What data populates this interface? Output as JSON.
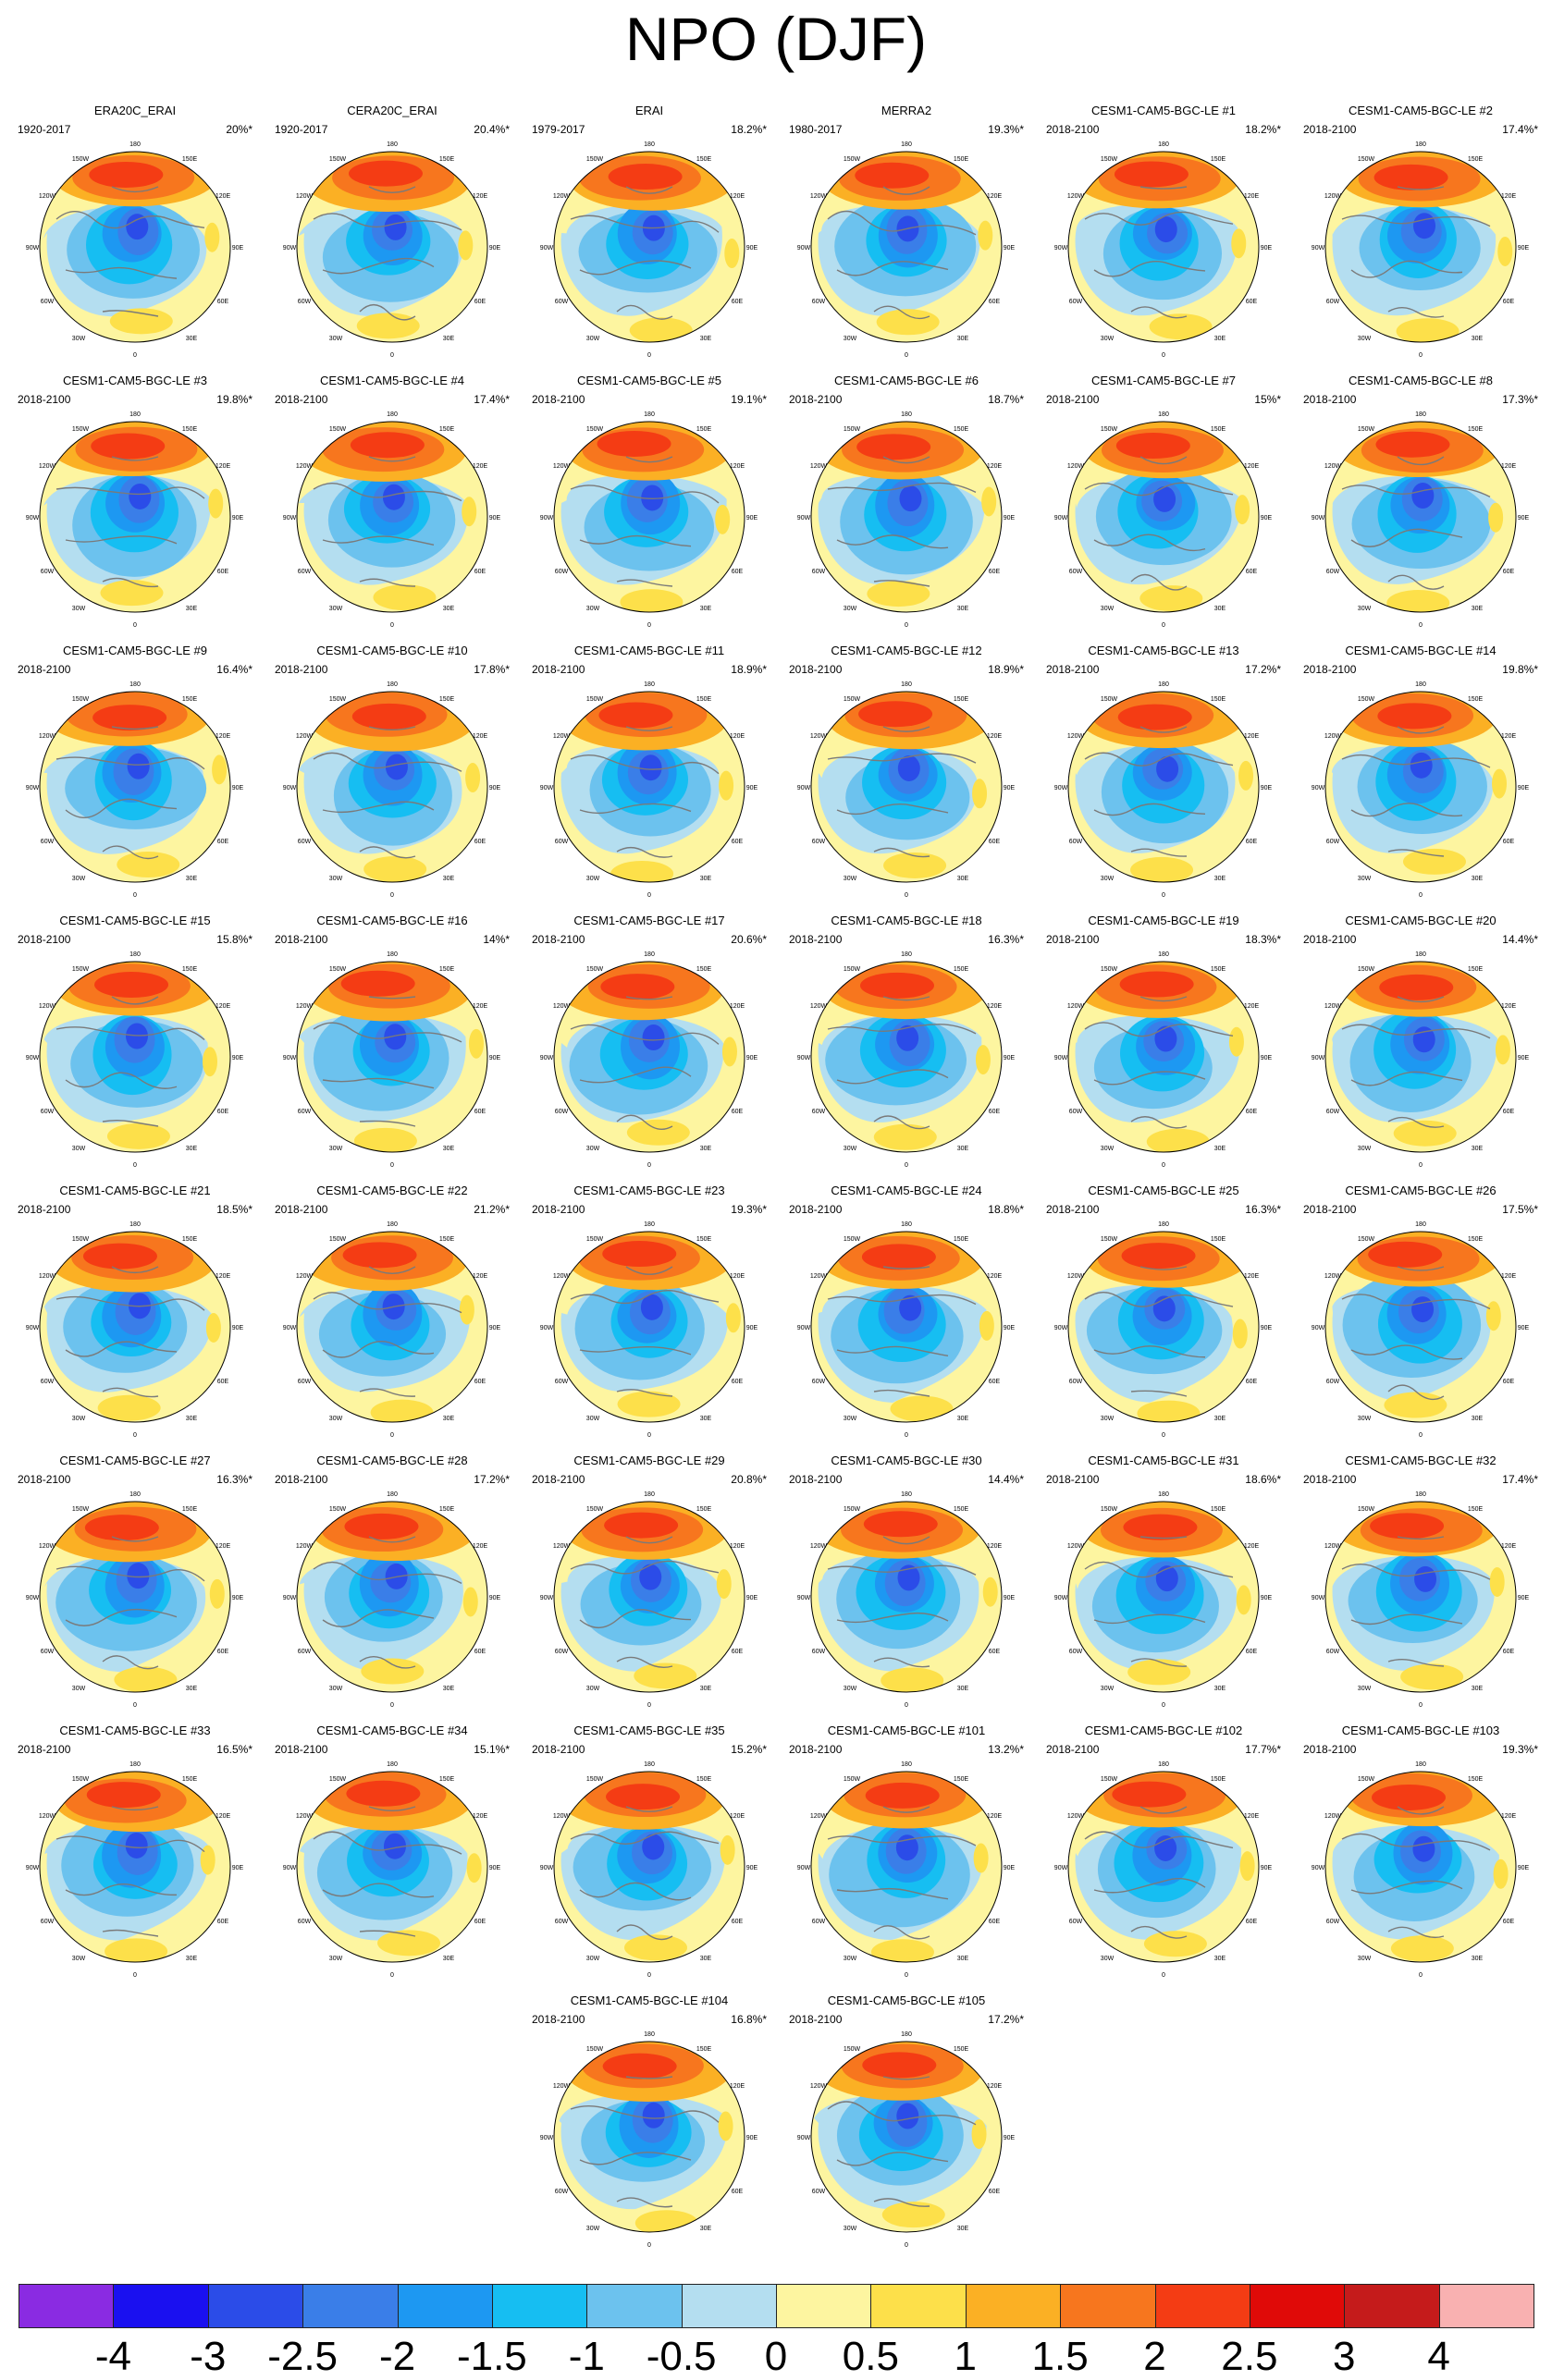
{
  "title": "NPO (DJF)",
  "map_labels": {
    "top": "180",
    "tl": "150W",
    "tr": "150E",
    "ul": "120W",
    "ur": "120E",
    "l": "90W",
    "r": "90E",
    "ll": "60W",
    "lr": "60E",
    "bl": "30W",
    "br": "30E",
    "bottom": "0"
  },
  "panels": [
    {
      "name": "ERA20C_ERAI",
      "period": "1920-2017",
      "var": "20%*"
    },
    {
      "name": "CERA20C_ERAI",
      "period": "1920-2017",
      "var": "20.4%*"
    },
    {
      "name": "ERAI",
      "period": "1979-2017",
      "var": "18.2%*"
    },
    {
      "name": "MERRA2",
      "period": "1980-2017",
      "var": "19.3%*"
    },
    {
      "name": "CESM1-CAM5-BGC-LE #1",
      "period": "2018-2100",
      "var": "18.2%*"
    },
    {
      "name": "CESM1-CAM5-BGC-LE #2",
      "period": "2018-2100",
      "var": "17.4%*"
    },
    {
      "name": "CESM1-CAM5-BGC-LE #3",
      "period": "2018-2100",
      "var": "19.8%*"
    },
    {
      "name": "CESM1-CAM5-BGC-LE #4",
      "period": "2018-2100",
      "var": "17.4%*"
    },
    {
      "name": "CESM1-CAM5-BGC-LE #5",
      "period": "2018-2100",
      "var": "19.1%*"
    },
    {
      "name": "CESM1-CAM5-BGC-LE #6",
      "period": "2018-2100",
      "var": "18.7%*"
    },
    {
      "name": "CESM1-CAM5-BGC-LE #7",
      "period": "2018-2100",
      "var": "15%*"
    },
    {
      "name": "CESM1-CAM5-BGC-LE #8",
      "period": "2018-2100",
      "var": "17.3%*"
    },
    {
      "name": "CESM1-CAM5-BGC-LE #9",
      "period": "2018-2100",
      "var": "16.4%*"
    },
    {
      "name": "CESM1-CAM5-BGC-LE #10",
      "period": "2018-2100",
      "var": "17.8%*"
    },
    {
      "name": "CESM1-CAM5-BGC-LE #11",
      "period": "2018-2100",
      "var": "18.9%*"
    },
    {
      "name": "CESM1-CAM5-BGC-LE #12",
      "period": "2018-2100",
      "var": "18.9%*"
    },
    {
      "name": "CESM1-CAM5-BGC-LE #13",
      "period": "2018-2100",
      "var": "17.2%*"
    },
    {
      "name": "CESM1-CAM5-BGC-LE #14",
      "period": "2018-2100",
      "var": "19.8%*"
    },
    {
      "name": "CESM1-CAM5-BGC-LE #15",
      "period": "2018-2100",
      "var": "15.8%*"
    },
    {
      "name": "CESM1-CAM5-BGC-LE #16",
      "period": "2018-2100",
      "var": "14%*"
    },
    {
      "name": "CESM1-CAM5-BGC-LE #17",
      "period": "2018-2100",
      "var": "20.6%*"
    },
    {
      "name": "CESM1-CAM5-BGC-LE #18",
      "period": "2018-2100",
      "var": "16.3%*"
    },
    {
      "name": "CESM1-CAM5-BGC-LE #19",
      "period": "2018-2100",
      "var": "18.3%*"
    },
    {
      "name": "CESM1-CAM5-BGC-LE #20",
      "period": "2018-2100",
      "var": "14.4%*"
    },
    {
      "name": "CESM1-CAM5-BGC-LE #21",
      "period": "2018-2100",
      "var": "18.5%*"
    },
    {
      "name": "CESM1-CAM5-BGC-LE #22",
      "period": "2018-2100",
      "var": "21.2%*"
    },
    {
      "name": "CESM1-CAM5-BGC-LE #23",
      "period": "2018-2100",
      "var": "19.3%*"
    },
    {
      "name": "CESM1-CAM5-BGC-LE #24",
      "period": "2018-2100",
      "var": "18.8%*"
    },
    {
      "name": "CESM1-CAM5-BGC-LE #25",
      "period": "2018-2100",
      "var": "16.3%*"
    },
    {
      "name": "CESM1-CAM5-BGC-LE #26",
      "period": "2018-2100",
      "var": "17.5%*"
    },
    {
      "name": "CESM1-CAM5-BGC-LE #27",
      "period": "2018-2100",
      "var": "16.3%*"
    },
    {
      "name": "CESM1-CAM5-BGC-LE #28",
      "period": "2018-2100",
      "var": "17.2%*"
    },
    {
      "name": "CESM1-CAM5-BGC-LE #29",
      "period": "2018-2100",
      "var": "20.8%*"
    },
    {
      "name": "CESM1-CAM5-BGC-LE #30",
      "period": "2018-2100",
      "var": "14.4%*"
    },
    {
      "name": "CESM1-CAM5-BGC-LE #31",
      "period": "2018-2100",
      "var": "18.6%*"
    },
    {
      "name": "CESM1-CAM5-BGC-LE #32",
      "period": "2018-2100",
      "var": "17.4%*"
    },
    {
      "name": "CESM1-CAM5-BGC-LE #33",
      "period": "2018-2100",
      "var": "16.5%*"
    },
    {
      "name": "CESM1-CAM5-BGC-LE #34",
      "period": "2018-2100",
      "var": "15.1%*"
    },
    {
      "name": "CESM1-CAM5-BGC-LE #35",
      "period": "2018-2100",
      "var": "15.2%*"
    },
    {
      "name": "CESM1-CAM5-BGC-LE #101",
      "period": "2018-2100",
      "var": "13.2%*"
    },
    {
      "name": "CESM1-CAM5-BGC-LE #102",
      "period": "2018-2100",
      "var": "17.7%*"
    },
    {
      "name": "CESM1-CAM5-BGC-LE #103",
      "period": "2018-2100",
      "var": "19.3%*"
    },
    {
      "name": "CESM1-CAM5-BGC-LE #104",
      "period": "2018-2100",
      "var": "16.8%*"
    },
    {
      "name": "CESM1-CAM5-BGC-LE #105",
      "period": "2018-2100",
      "var": "17.2%*"
    }
  ],
  "colorbar": {
    "labels": [
      "-4",
      "-3",
      "-2.5",
      "-2",
      "-1.5",
      "-1",
      "-0.5",
      "0",
      "0.5",
      "1",
      "1.5",
      "2",
      "2.5",
      "3",
      "4"
    ],
    "colors": [
      "#8a2be2",
      "#1a10f0",
      "#2b4ce8",
      "#3a7ee8",
      "#1d98f2",
      "#16bef2",
      "#6cc2ee",
      "#b4def0",
      "#fdf5a0",
      "#fde04a",
      "#fbb024",
      "#f7761e",
      "#f43c14",
      "#e00a08",
      "#c51b1b",
      "#f9b1b1"
    ]
  }
}
